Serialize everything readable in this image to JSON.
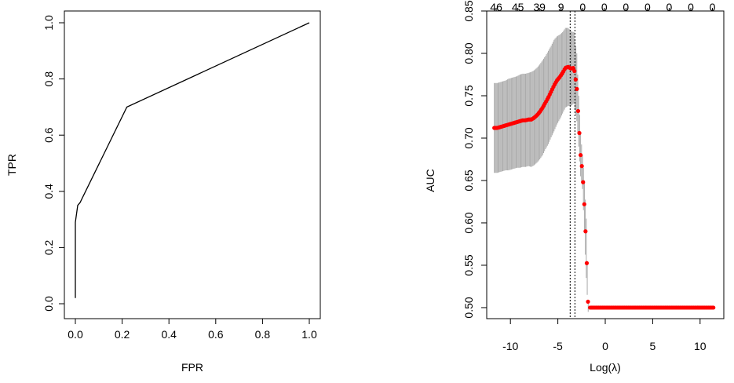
{
  "chart_data": [
    {
      "type": "line",
      "title": "",
      "xlabel": "FPR",
      "ylabel": "TPR",
      "xlim": [
        0,
        1
      ],
      "ylim": [
        0,
        1
      ],
      "x_ticks": [
        "0.0",
        "0.2",
        "0.4",
        "0.6",
        "0.8",
        "1.0"
      ],
      "y_ticks": [
        "0.0",
        "0.2",
        "0.4",
        "0.6",
        "0.8",
        "1.0"
      ],
      "grid": false,
      "line_color": "#000000",
      "series": [
        {
          "points": [
            [
              0.0,
              0.02
            ],
            [
              0.0,
              0.29
            ],
            [
              0.01,
              0.35
            ],
            [
              0.02,
              0.36
            ],
            [
              0.22,
              0.7
            ],
            [
              1.0,
              1.0
            ]
          ]
        }
      ]
    },
    {
      "type": "scatter",
      "title": "",
      "xlabel": "Log(λ)",
      "ylabel": "AUC",
      "xlim": [
        -12.5,
        12.5
      ],
      "ylim": [
        0.487,
        0.85
      ],
      "x_ticks": [
        "-10",
        "-5",
        "0",
        "5",
        "10"
      ],
      "y_ticks": [
        "0.50",
        "0.55",
        "0.60",
        "0.65",
        "0.70",
        "0.75",
        "0.80",
        "0.85"
      ],
      "top_axis_counts": [
        "46",
        "45",
        "39",
        "9",
        "0",
        "0",
        "0",
        "0",
        "0",
        "0",
        "0"
      ],
      "vertical_lines": [
        -3.7,
        -3.2
      ],
      "grid": false,
      "point_color": "#ff0000",
      "errorbar_color": "#aaaaaa",
      "series": [
        {
          "x": [
            -11.7,
            -11.4,
            -11.1,
            -10.8,
            -10.5,
            -10.2,
            -9.9,
            -9.6,
            -9.3,
            -9.0,
            -8.7,
            -8.4,
            -8.1,
            -7.8,
            -7.5,
            -7.2,
            -6.9,
            -6.6,
            -6.3,
            -6.0,
            -5.7,
            -5.4,
            -5.1,
            -4.8,
            -4.5,
            -4.2,
            -3.9,
            -3.6,
            -3.3,
            -3.0,
            -2.8,
            -2.6,
            -2.4,
            -2.2,
            -2.0,
            -1.8
          ],
          "y": [
            0.712,
            0.712,
            0.713,
            0.714,
            0.715,
            0.716,
            0.717,
            0.718,
            0.719,
            0.72,
            0.721,
            0.721,
            0.722,
            0.722,
            0.724,
            0.727,
            0.731,
            0.736,
            0.742,
            0.748,
            0.755,
            0.762,
            0.768,
            0.772,
            0.777,
            0.783,
            0.784,
            0.782,
            0.783,
            0.76,
            0.72,
            0.68,
            0.66,
            0.62,
            0.57,
            0.5
          ],
          "error": [
            0.053,
            0.053,
            0.053,
            0.053,
            0.053,
            0.054,
            0.054,
            0.054,
            0.054,
            0.055,
            0.055,
            0.055,
            0.055,
            0.056,
            0.056,
            0.056,
            0.056,
            0.056,
            0.055,
            0.055,
            0.054,
            0.054,
            0.052,
            0.05,
            0.048,
            0.047,
            0.046,
            0.044,
            0.042,
            0.04,
            0.03,
            0.025,
            0.02,
            0.03,
            0.035,
            0.005
          ]
        }
      ],
      "flat_segment": {
        "x_start": -1.6,
        "x_end": 11.5,
        "y": 0.5
      }
    }
  ]
}
